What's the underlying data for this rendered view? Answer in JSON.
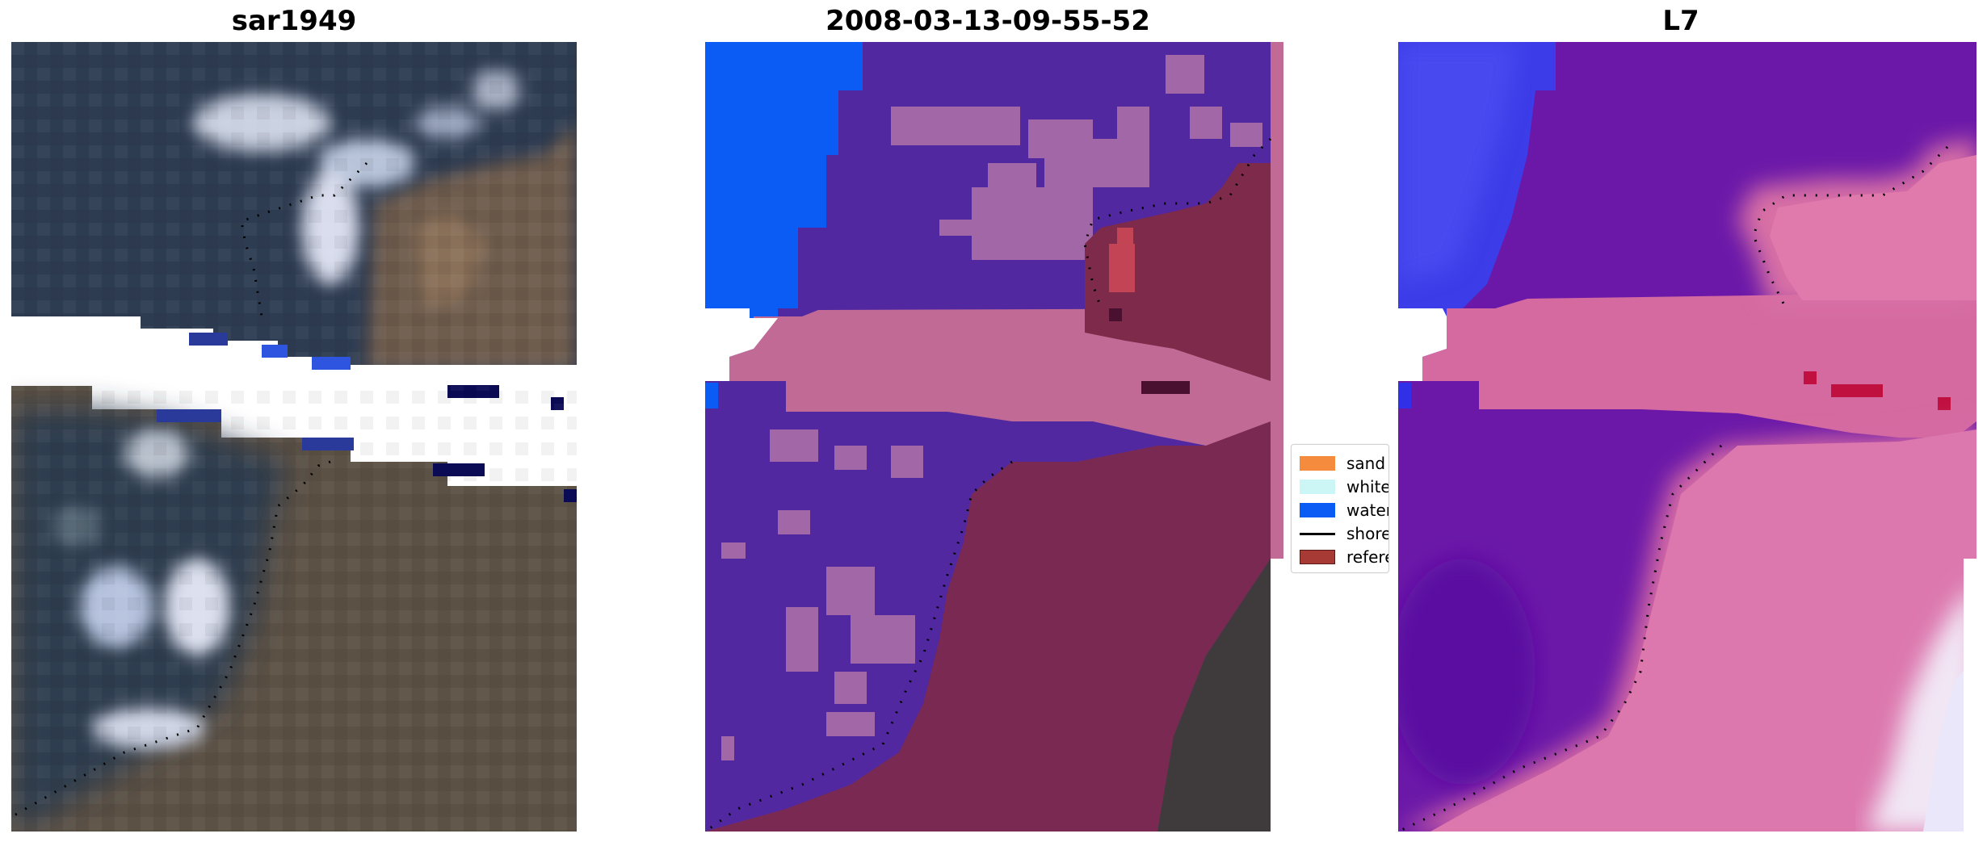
{
  "panels": [
    {
      "title": "sar1949"
    },
    {
      "title": "2008-03-13-09-55-52"
    },
    {
      "title": "L7"
    }
  ],
  "legend": {
    "items": [
      {
        "label": "sand",
        "color": "#f58b3c",
        "kind": "patch"
      },
      {
        "label": "whitew",
        "color": "#ccf6f6",
        "kind": "patch"
      },
      {
        "label": "water",
        "color": "#0a5cf5",
        "kind": "patch"
      },
      {
        "label": "shorel",
        "color": "#000000",
        "kind": "line"
      },
      {
        "label": "referen",
        "color": "#a83a36",
        "kind": "patch"
      }
    ]
  },
  "colors": {
    "dark_water": "#2f3f56",
    "land": "#6a5a4c",
    "classified_water_purple": "#5128a0",
    "classified_water_blue": "#0a5cf5",
    "pink_band": "#c06a95",
    "reference_maroon": "#7e2a4a",
    "l7_purple": "#6b18a8",
    "l7_pink": "#d96ea0"
  }
}
